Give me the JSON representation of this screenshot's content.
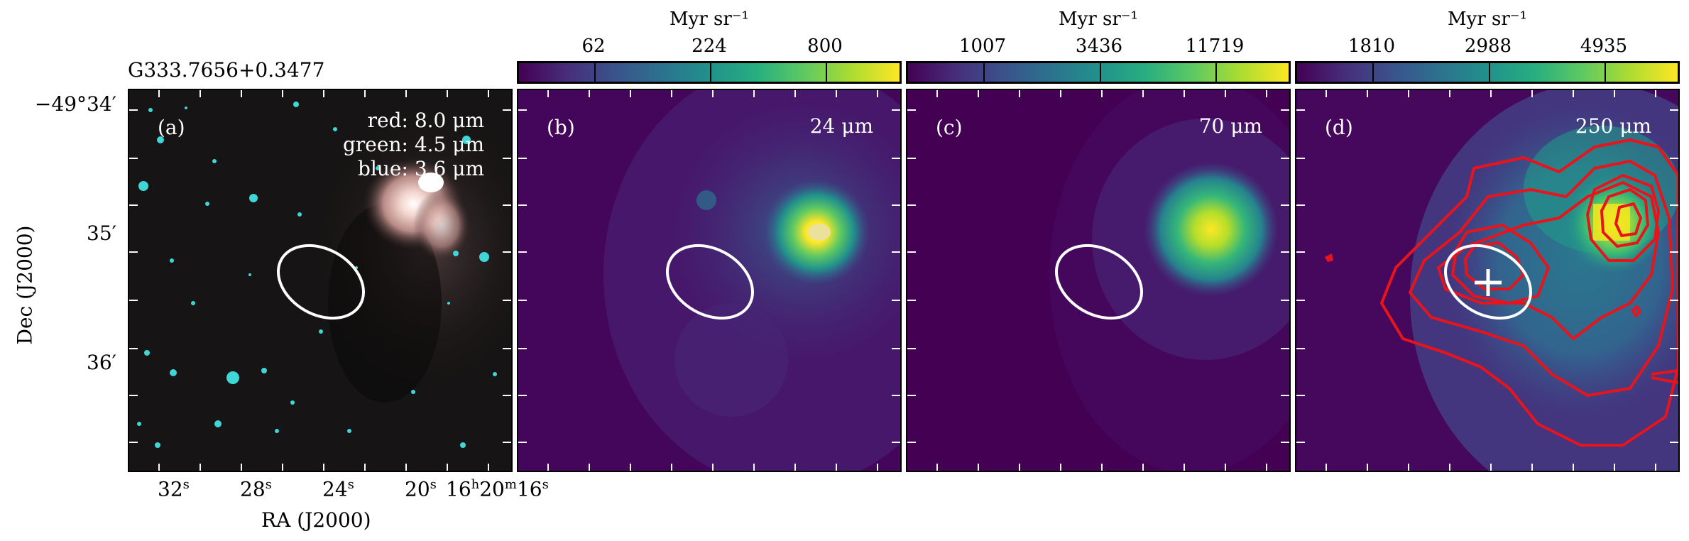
{
  "figure": {
    "source_name": "G333.7656+0.3477",
    "ylabel": "Dec (J2000)",
    "xlabel": "RA (J2000)",
    "dec_ticks": [
      "−49°34′",
      "35′",
      "36′"
    ],
    "ra_ticks": [
      {
        "num": "32",
        "unit": "s"
      },
      {
        "num": "28",
        "unit": "s"
      },
      {
        "num": "24",
        "unit": "s"
      },
      {
        "num": "20",
        "unit": "s"
      },
      {
        "num": "16",
        "unit": "h",
        "num2": "20",
        "unit2": "m",
        "num3": "16",
        "unit3": "s"
      }
    ]
  },
  "panels": [
    {
      "id": "a",
      "label": "(a)",
      "legend": [
        "red: 8.0 μm",
        "green: 4.5 μm",
        "blue: 3.6 μm"
      ]
    },
    {
      "id": "b",
      "label": "(b)",
      "wavelength": "24 μm",
      "colorbar": {
        "unit": "Myr sr⁻¹",
        "ticks": [
          "62",
          "224",
          "800"
        ]
      }
    },
    {
      "id": "c",
      "label": "(c)",
      "wavelength": "70 μm",
      "colorbar": {
        "unit": "Myr sr⁻¹",
        "ticks": [
          "1007",
          "3436",
          "11719"
        ]
      }
    },
    {
      "id": "d",
      "label": "(d)",
      "wavelength": "250 μm",
      "colorbar": {
        "unit": "Myr sr⁻¹",
        "ticks": [
          "1810",
          "2988",
          "4935"
        ]
      }
    }
  ],
  "colors": {
    "viridis_low": "#440154",
    "viridis_high": "#fde725",
    "ellipse": "#ffffff",
    "contour": "#e8141c"
  }
}
